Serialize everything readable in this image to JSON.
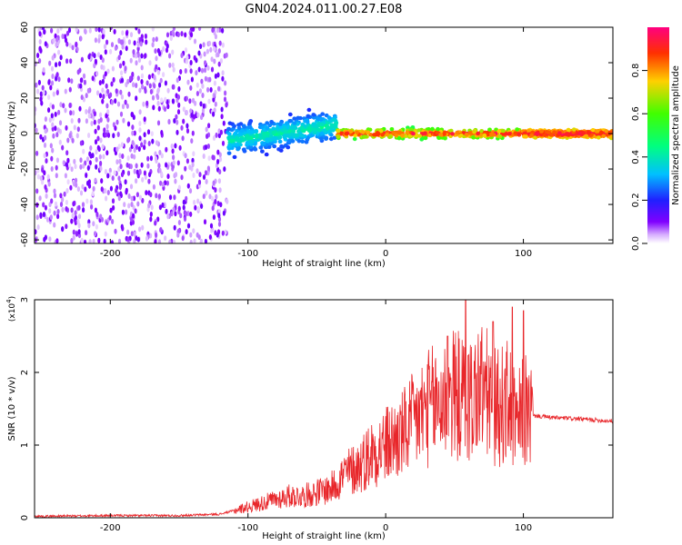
{
  "title": "GN04.2024.011.00.27.E08",
  "chart_data": [
    {
      "type": "heatmap",
      "xlabel": "Height of straight line (km)",
      "ylabel": "Frequency (Hz)",
      "xlim": [
        -255,
        165
      ],
      "ylim": [
        -62,
        60
      ],
      "xticks": [
        "-200",
        "-100",
        "0",
        "100"
      ],
      "xtick_values": [
        -200,
        -100,
        0,
        100
      ],
      "yticks": [
        "-60",
        "-40",
        "-20",
        "0",
        "20",
        "40",
        "60"
      ],
      "ytick_values": [
        -60,
        -40,
        -20,
        0,
        20,
        40,
        60
      ],
      "colorbar": {
        "label": "Normalized spectral amplitude",
        "range": [
          0,
          1
        ],
        "ticks": [
          "0.0",
          "0.2",
          "0.4",
          "0.6",
          "0.8"
        ],
        "tick_values": [
          0.0,
          0.2,
          0.4,
          0.6,
          0.8
        ]
      },
      "regions": [
        {
          "x_range": [
            -255,
            -115
          ],
          "freq_range": [
            -62,
            60
          ],
          "amplitude": [
            0.02,
            0.12
          ]
        },
        {
          "x_range": [
            -115,
            -35
          ],
          "freq_center": [
            -4,
            5
          ],
          "freq_halfwidth": 12,
          "amplitude": [
            0.2,
            0.45
          ]
        },
        {
          "x_range": [
            -35,
            100
          ],
          "freq_center": 0,
          "freq_halfwidth": 4,
          "amplitude": [
            0.5,
            1.0
          ]
        },
        {
          "x_range": [
            100,
            165
          ],
          "freq_center": 0,
          "freq_halfwidth": 3,
          "amplitude": [
            0.7,
            1.0
          ]
        }
      ]
    },
    {
      "type": "line",
      "xlabel": "Height of straight line (km)",
      "ylabel": "SNR (10 * v/v)",
      "y_multiplier": "(x10",
      "y_multiplier_exp": "4",
      "y_multiplier_close": ")",
      "xlim": [
        -255,
        165
      ],
      "ylim": [
        0,
        3
      ],
      "xticks": [
        "-200",
        "-100",
        "0",
        "100"
      ],
      "xtick_values": [
        -200,
        -100,
        0,
        100
      ],
      "yticks": [
        "0",
        "1",
        "2",
        "3"
      ],
      "ytick_values": [
        0,
        1,
        2,
        3
      ],
      "series": [
        {
          "color": "#e8262a",
          "x": [
            -255,
            -200,
            -150,
            -120,
            -100,
            -90,
            -80,
            -70,
            -60,
            -50,
            -40,
            -30,
            -20,
            -10,
            0,
            10,
            20,
            30,
            40,
            50,
            60,
            70,
            80,
            90,
            95,
            100,
            105,
            110,
            120,
            140,
            165
          ],
          "y": [
            0.02,
            0.03,
            0.03,
            0.05,
            0.15,
            0.2,
            0.25,
            0.3,
            0.3,
            0.35,
            0.4,
            0.6,
            0.7,
            0.9,
            1.0,
            1.1,
            1.3,
            1.5,
            1.6,
            1.7,
            1.6,
            1.8,
            1.5,
            1.6,
            1.2,
            1.5,
            1.4,
            1.4,
            1.38,
            1.36,
            1.33
          ]
        }
      ],
      "spikes": [
        {
          "x": 45,
          "y": 2.5
        },
        {
          "x": 58,
          "y": 3.0
        },
        {
          "x": 78,
          "y": 2.7
        },
        {
          "x": 92,
          "y": 2.9
        },
        {
          "x": 100,
          "y": 2.85
        }
      ]
    }
  ]
}
